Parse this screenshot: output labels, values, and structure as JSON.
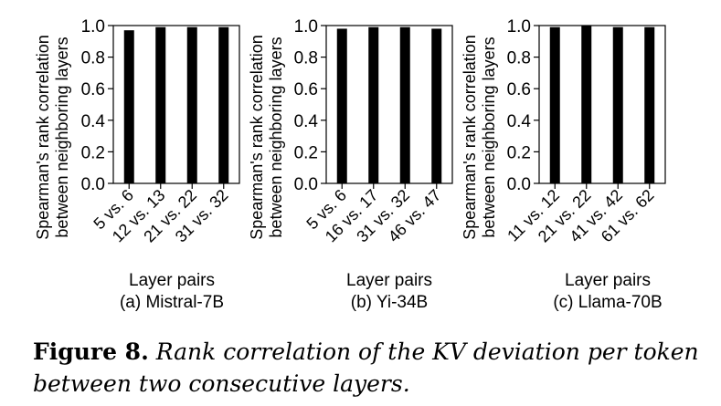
{
  "chart_data": [
    {
      "type": "bar",
      "ylabel_line1": "Spearman's rank correlation",
      "ylabel_line2": "between neighboring layers",
      "xlabel": "Layer pairs",
      "subtitle": "(a) Mistral-7B",
      "categories": [
        "5 vs. 6",
        "12 vs. 13",
        "21 vs. 22",
        "31 vs. 32"
      ],
      "values": [
        0.97,
        0.99,
        0.99,
        0.99
      ],
      "ylim": [
        0,
        1.0
      ],
      "yticks": [
        "0.0",
        "0.2",
        "0.4",
        "0.6",
        "0.8",
        "1.0"
      ],
      "grid": false,
      "bar_color": "#000000"
    },
    {
      "type": "bar",
      "ylabel_line1": "Spearman's rank correlation",
      "ylabel_line2": "between neighboring layers",
      "xlabel": "Layer pairs",
      "subtitle": "(b) Yi-34B",
      "categories": [
        "5 vs. 6",
        "16 vs. 17",
        "31 vs. 32",
        "46 vs. 47"
      ],
      "values": [
        0.98,
        0.99,
        0.99,
        0.98
      ],
      "ylim": [
        0,
        1.0
      ],
      "yticks": [
        "0.0",
        "0.2",
        "0.4",
        "0.6",
        "0.8",
        "1.0"
      ],
      "grid": false,
      "bar_color": "#000000"
    },
    {
      "type": "bar",
      "ylabel_line1": "Spearman's rank correlation",
      "ylabel_line2": "between neighboring layers",
      "xlabel": "Layer pairs",
      "subtitle": "(c) Llama-70B",
      "categories": [
        "11 vs. 12",
        "21 vs. 22",
        "41 vs. 42",
        "61 vs. 62"
      ],
      "values": [
        0.99,
        1.0,
        0.99,
        0.99
      ],
      "ylim": [
        0,
        1.0
      ],
      "yticks": [
        "0.0",
        "0.2",
        "0.4",
        "0.6",
        "0.8",
        "1.0"
      ],
      "grid": false,
      "bar_color": "#000000"
    }
  ],
  "caption": {
    "label": "Figure 8.",
    "text": "Rank correlation of the KV deviation per token between two consecutive layers."
  }
}
